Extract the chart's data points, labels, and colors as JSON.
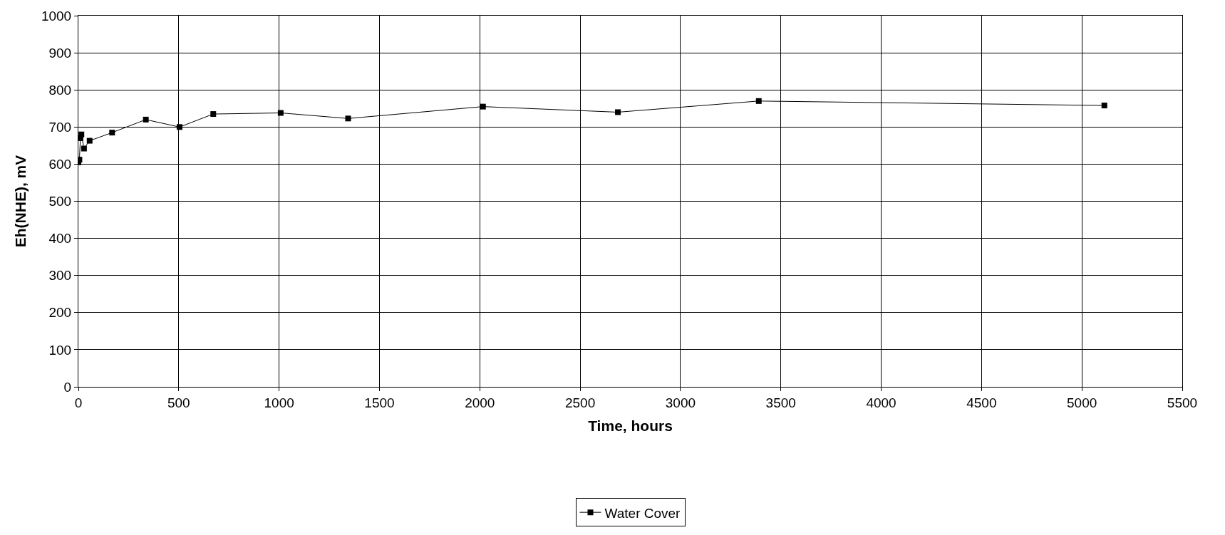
{
  "chart_data": {
    "type": "line",
    "xlabel": "Time, hours",
    "ylabel": "Eh(NHE), mV",
    "x": [
      0,
      5,
      10,
      15,
      28,
      56,
      168,
      336,
      504,
      672,
      1008,
      1344,
      2016,
      2688,
      3390,
      5112
    ],
    "series": [
      {
        "name": "Water Cover",
        "color": "#000000",
        "values": [
          605,
          612,
          670,
          680,
          642,
          663,
          685,
          720,
          700,
          735,
          738,
          723,
          755,
          740,
          770,
          758
        ]
      }
    ],
    "xlim": [
      0,
      5500
    ],
    "xticks": [
      0,
      500,
      1000,
      1500,
      2000,
      2500,
      3000,
      3500,
      4000,
      4500,
      5000,
      5500
    ],
    "ylim": [
      0,
      1000
    ],
    "yticks": [
      0,
      100,
      200,
      300,
      400,
      500,
      600,
      700,
      800,
      900,
      1000
    ],
    "grid": true,
    "legend": "bottom",
    "marker": "square",
    "line_style": "solid"
  }
}
